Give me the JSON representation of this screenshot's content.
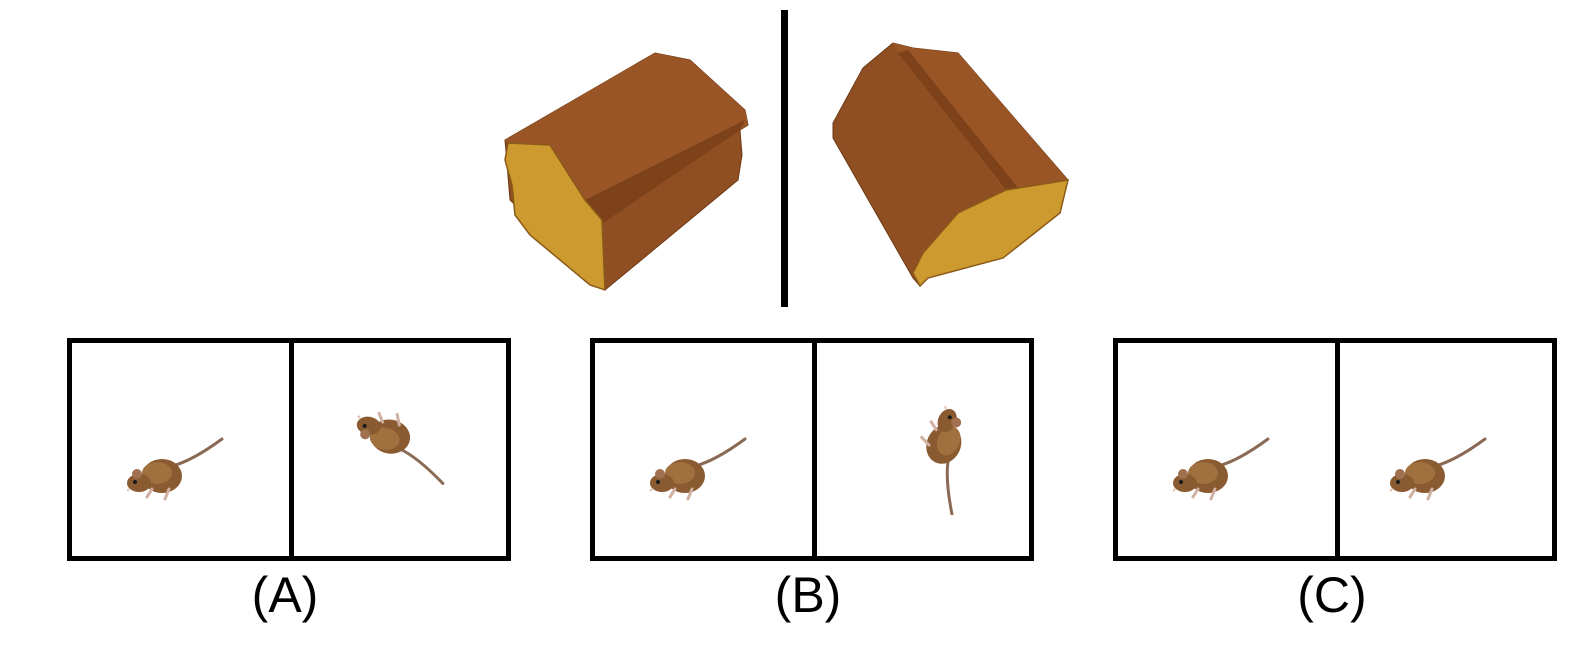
{
  "question": {
    "reference_pair": [
      {
        "object": "block-object",
        "orientation": "view-1"
      },
      {
        "object": "block-object",
        "orientation": "view-2"
      }
    ]
  },
  "options": [
    {
      "label": "(A)",
      "left_icon": "mouse-icon",
      "right_icon": "mouse-icon"
    },
    {
      "label": "(B)",
      "left_icon": "mouse-icon",
      "right_icon": "mouse-icon"
    },
    {
      "label": "(C)",
      "left_icon": "mouse-icon",
      "right_icon": "mouse-icon"
    }
  ],
  "colors": {
    "block_side": "#8f4f22",
    "block_top": "#9a5526",
    "block_face": "#cc9a2e",
    "mouse_body": "#8a5a30",
    "outline": "#000000"
  }
}
